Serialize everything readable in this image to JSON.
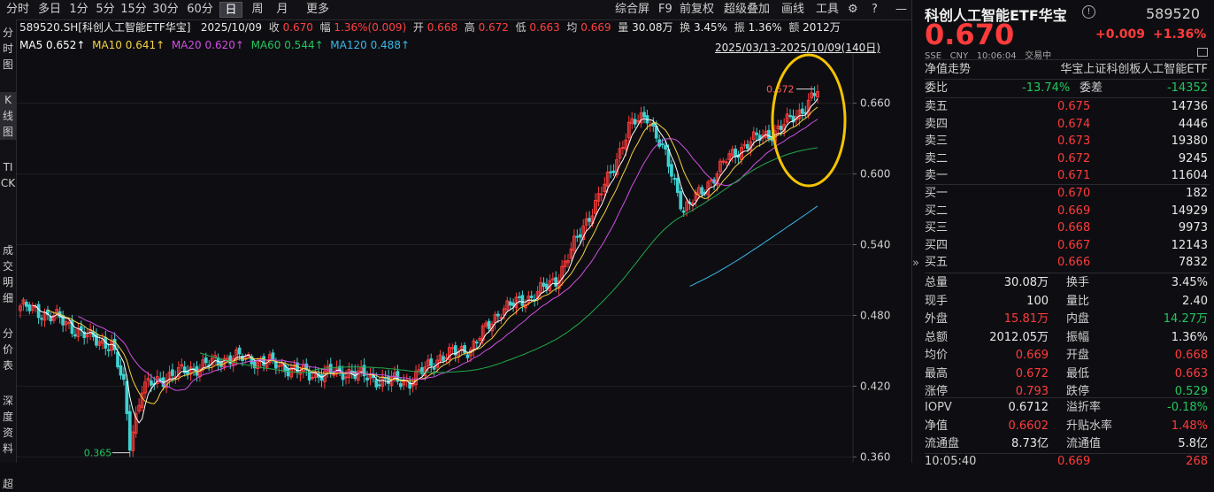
{
  "toolbar": {
    "periods": [
      "分时",
      "多日",
      "1分",
      "5分",
      "15分",
      "30分",
      "60分",
      "日",
      "周",
      "月",
      "更多"
    ],
    "active_period": "日",
    "right_items": [
      "综合屏",
      "F9",
      "前复权",
      "超级叠加",
      "画线",
      "工具"
    ]
  },
  "side_tabs": [
    "分时图",
    "K线图",
    "TICK",
    "成交明细",
    "分价表",
    "深度资料",
    "超"
  ],
  "info": {
    "code": "589520.SH[科创人工智能ETF华宝]",
    "date": "2025/10/09",
    "close_label": "收",
    "close": "0.670",
    "range_label": "幅",
    "range": "1.36%(0.009)",
    "open_label": "开",
    "open": "0.668",
    "high_label": "高",
    "high": "0.672",
    "low_label": "低",
    "low": "0.663",
    "avg_label": "均",
    "avg": "0.669",
    "vol_label": "量",
    "vol": "30.08万",
    "turn_label": "换",
    "turn": "3.45%",
    "amp_label": "振",
    "amp": "1.36%",
    "amt_label": "额",
    "amt": "2012万"
  },
  "ma": {
    "ma5": "MA5",
    "ma5_v": "0.652↑",
    "ma10": "MA10",
    "ma10_v": "0.641↑",
    "ma20": "MA20",
    "ma20_v": "0.620↑",
    "ma60": "MA60",
    "ma60_v": "0.544↑",
    "ma120": "MA120",
    "ma120_v": "0.488↑",
    "range_text": "2025/03/13-2025/10/09(140日)"
  },
  "chart_data": {
    "type": "candlestick",
    "y_ticks": [
      "0.660",
      "0.600",
      "0.540",
      "0.480",
      "0.420",
      "0.360"
    ],
    "ylim": [
      0.355,
      0.695
    ],
    "max_label": "0.672",
    "min_label": "0.365",
    "colors": {
      "up": "#ff3b3b",
      "down": "#3fd0d0",
      "ma5": "#ffffff",
      "ma10": "#f5d142",
      "ma20": "#d04fe0",
      "ma60": "#22a84a",
      "ma120": "#3ab8e8",
      "highlight": "#f5c400"
    }
  },
  "quote": {
    "name": "科创人工智能ETF华宝",
    "code": "589520",
    "price": "0.670",
    "change": "+0.009",
    "change_pct": "+1.36%",
    "meta": [
      "SSE",
      "CNY",
      "10:06:04",
      "交易中"
    ],
    "nav_trend": "净值走势",
    "index_name": "华宝上证科创板人工智能ETF",
    "weibi_label": "委比",
    "weibi": "-13.74%",
    "weicha_label": "委差",
    "weicha": "-14352",
    "asks": [
      {
        "label": "卖五",
        "price": "0.675",
        "vol": "14736"
      },
      {
        "label": "卖四",
        "price": "0.674",
        "vol": "4446"
      },
      {
        "label": "卖三",
        "price": "0.673",
        "vol": "19380"
      },
      {
        "label": "卖二",
        "price": "0.672",
        "vol": "9245"
      },
      {
        "label": "卖一",
        "price": "0.671",
        "vol": "11604"
      }
    ],
    "bids": [
      {
        "label": "买一",
        "price": "0.670",
        "vol": "182"
      },
      {
        "label": "买二",
        "price": "0.669",
        "vol": "14929"
      },
      {
        "label": "买三",
        "price": "0.668",
        "vol": "9973"
      },
      {
        "label": "买四",
        "price": "0.667",
        "vol": "12143"
      },
      {
        "label": "买五",
        "price": "0.666",
        "vol": "7832"
      }
    ],
    "stats": [
      {
        "l1": "总量",
        "v1": "30.08万",
        "c1": "w",
        "l2": "换手",
        "v2": "3.45%",
        "c2": "w"
      },
      {
        "l1": "现手",
        "v1": "100",
        "c1": "w",
        "l2": "量比",
        "v2": "2.40",
        "c2": "w"
      },
      {
        "l1": "外盘",
        "v1": "15.81万",
        "c1": "r",
        "l2": "内盘",
        "v2": "14.27万",
        "c2": "g"
      },
      {
        "l1": "总额",
        "v1": "2012.05万",
        "c1": "w",
        "l2": "振幅",
        "v2": "1.36%",
        "c2": "w"
      },
      {
        "l1": "均价",
        "v1": "0.669",
        "c1": "r",
        "l2": "开盘",
        "v2": "0.668",
        "c2": "r"
      },
      {
        "l1": "最高",
        "v1": "0.672",
        "c1": "r",
        "l2": "最低",
        "v2": "0.663",
        "c2": "r"
      },
      {
        "l1": "涨停",
        "v1": "0.793",
        "c1": "r",
        "l2": "跌停",
        "v2": "0.529",
        "c2": "g"
      }
    ],
    "stats2": [
      {
        "l1": "IOPV",
        "v1": "0.6712",
        "c1": "w",
        "l2": "溢折率",
        "v2": "-0.18%",
        "c2": "g"
      },
      {
        "l1": "净值",
        "v1": "0.6602",
        "c1": "r",
        "l2": "升贴水率",
        "v2": "1.48%",
        "c2": "r"
      },
      {
        "l1": "流通盘",
        "v1": "8.73亿",
        "c1": "w",
        "l2": "流通值",
        "v2": "5.8亿",
        "c2": "w"
      }
    ],
    "tick": {
      "time": "10:05:40",
      "price": "0.669",
      "vol": "268"
    }
  }
}
